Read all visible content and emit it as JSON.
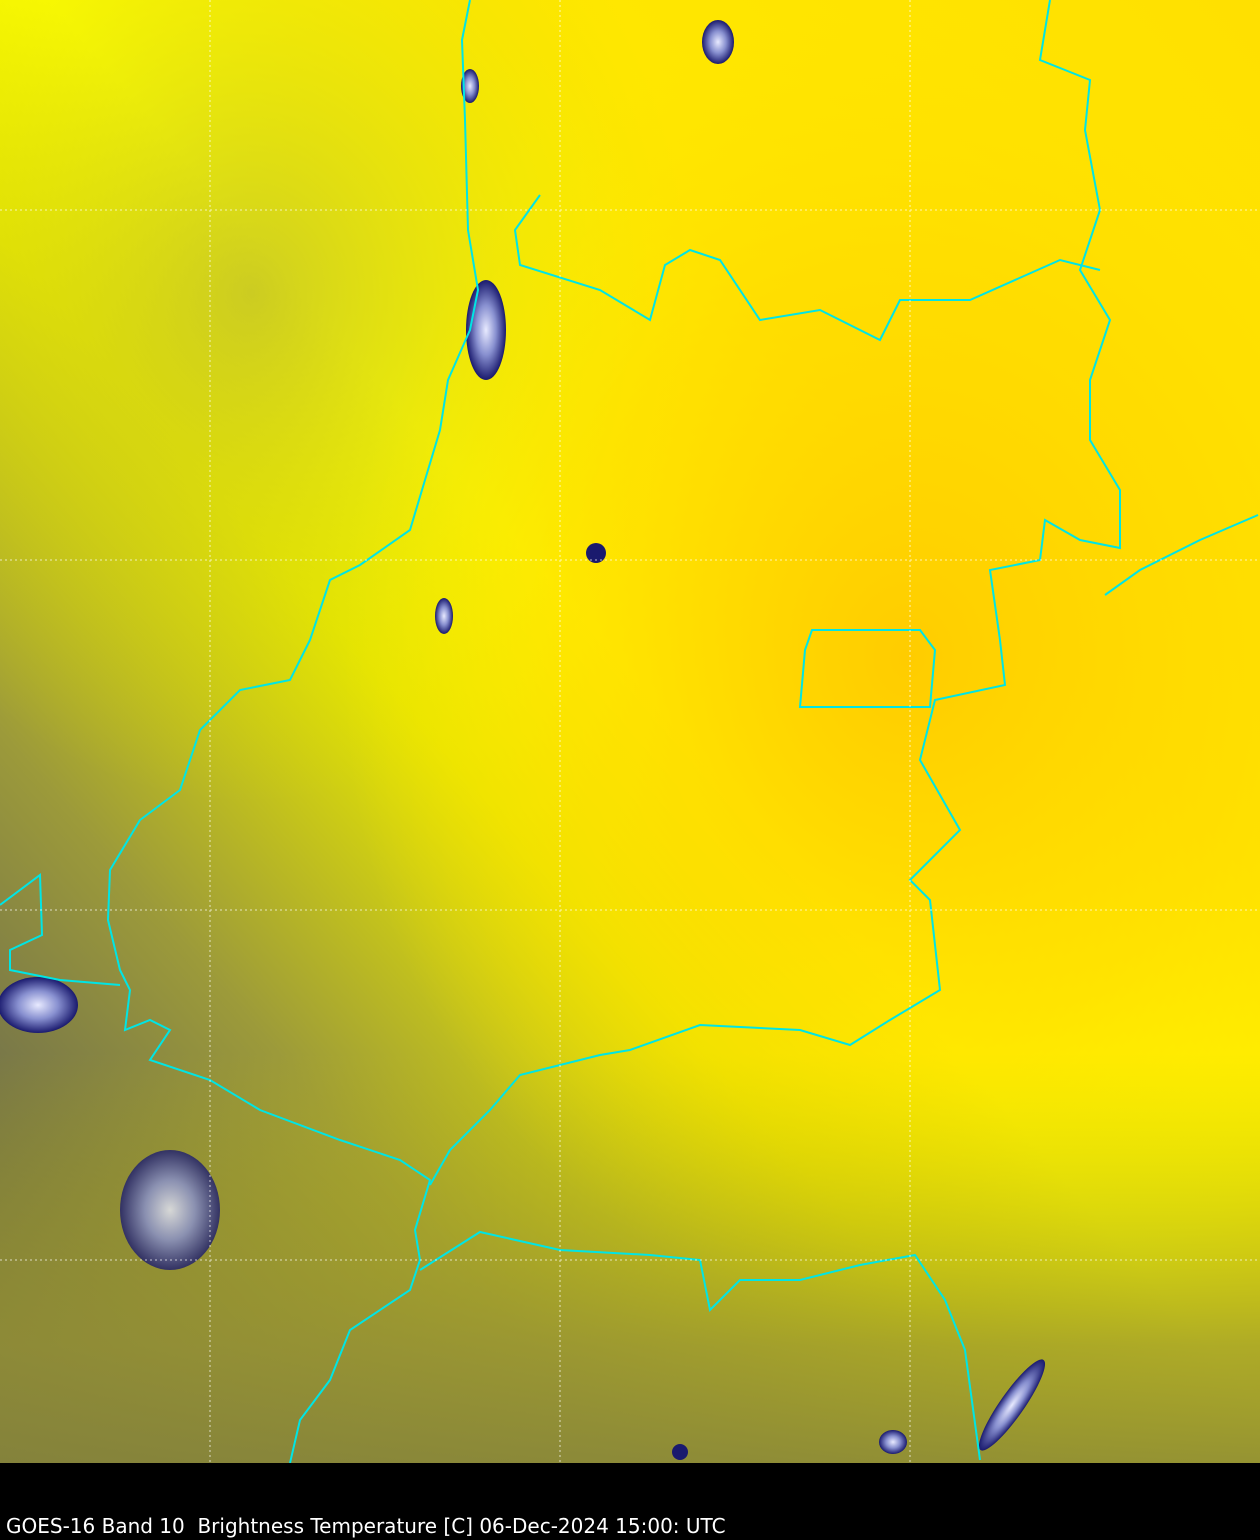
{
  "caption": "GOES-16 Band 10  Brightness Temperature [C] 06-Dec-2024 15:00: UTC",
  "colors": {
    "warm": "#ffd000",
    "mid": "#ffff00",
    "cool": "#5c5c50",
    "cold_cloud": "#1a1a6e",
    "boundaries": "#00e5e5",
    "grid": "#ffffff"
  }
}
